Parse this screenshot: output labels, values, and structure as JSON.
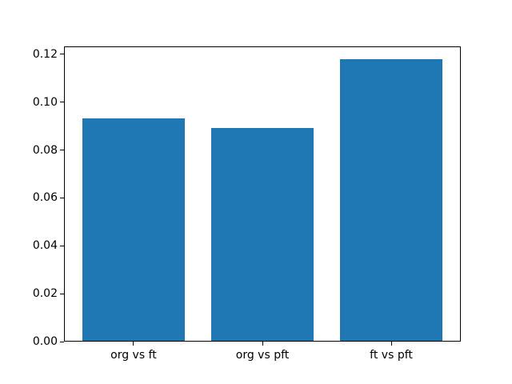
{
  "chart_data": {
    "type": "bar",
    "categories": [
      "org vs ft",
      "org vs pft",
      "ft vs pft"
    ],
    "values": [
      0.0928,
      0.0889,
      0.1176
    ],
    "bar_color": "#1f77b4",
    "background_color": "#ffffff",
    "axis_color": "#000000",
    "bar_width": 0.8,
    "xlim": [
      -0.54,
      2.54
    ],
    "ylim": [
      0,
      0.1233
    ],
    "yticks": [
      0,
      0.02,
      0.04,
      0.06,
      0.08,
      0.1,
      0.12
    ],
    "ytick_labels": [
      "0.00",
      "0.02",
      "0.04",
      "0.06",
      "0.08",
      "0.10",
      "0.12"
    ],
    "grid": false,
    "legend": false,
    "title": "",
    "xlabel": "",
    "ylabel": ""
  }
}
